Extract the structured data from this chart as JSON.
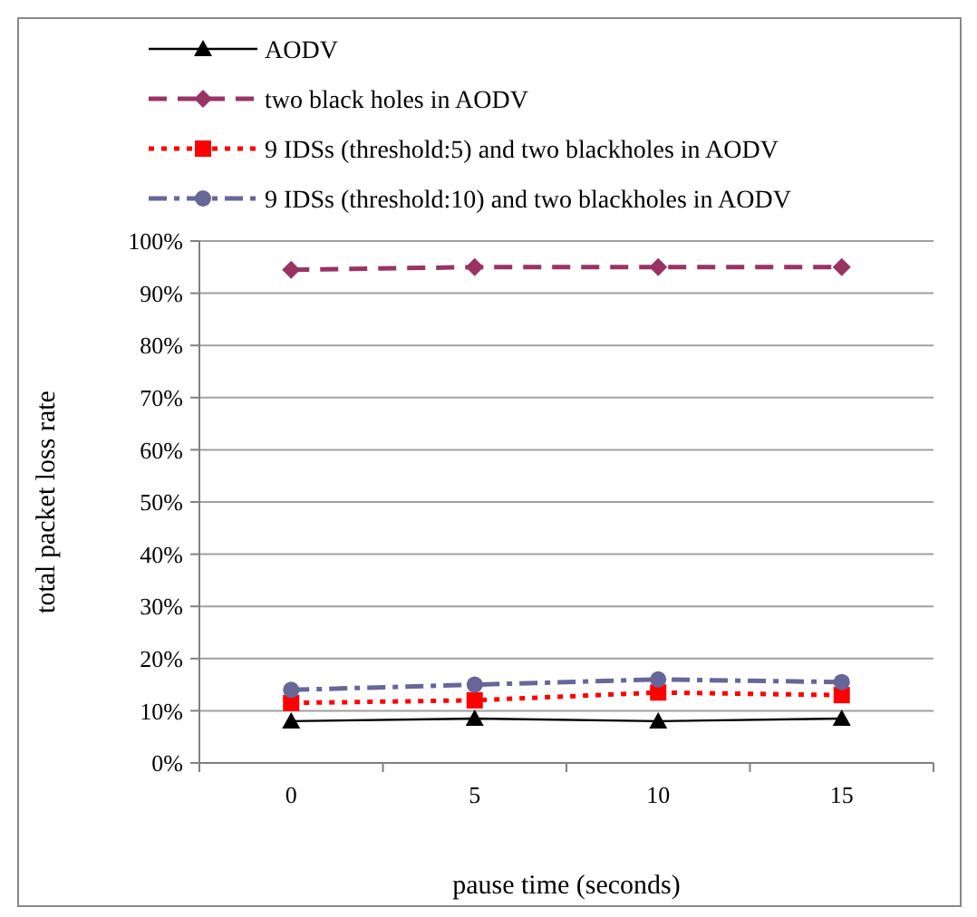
{
  "chart_data": {
    "type": "line",
    "xlabel": "pause time (seconds)",
    "ylabel": "total packet loss rate",
    "categories": [
      "0",
      "5",
      "10",
      "15"
    ],
    "series": [
      {
        "name": "AODV",
        "color": "#000000",
        "marker": "triangle",
        "line_style": "solid",
        "values": [
          8,
          8.5,
          8,
          8.5
        ]
      },
      {
        "name": "two black holes in AODV",
        "color": "#993366",
        "marker": "diamond",
        "line_style": "dashed",
        "values": [
          94.5,
          95,
          95,
          95
        ]
      },
      {
        "name": "9 IDSs (threshold:5) and two blackholes in AODV",
        "color": "#ff0000",
        "marker": "square",
        "line_style": "dotted",
        "values": [
          11.5,
          12,
          13.5,
          13
        ]
      },
      {
        "name": "9 IDSs (threshold:10) and two blackholes in AODV",
        "color": "#666699",
        "marker": "circle",
        "line_style": "dashdot",
        "values": [
          14,
          15,
          16,
          15.5
        ]
      }
    ],
    "ylim": [
      0,
      100
    ],
    "yticks": [
      {
        "value": 0,
        "label": "0%"
      },
      {
        "value": 10,
        "label": "10%"
      },
      {
        "value": 20,
        "label": "20%"
      },
      {
        "value": 30,
        "label": "30%"
      },
      {
        "value": 40,
        "label": "40%"
      },
      {
        "value": 50,
        "label": "50%"
      },
      {
        "value": 60,
        "label": "60%"
      },
      {
        "value": 70,
        "label": "70%"
      },
      {
        "value": 80,
        "label": "80%"
      },
      {
        "value": 90,
        "label": "90%"
      },
      {
        "value": 100,
        "label": "100%"
      }
    ],
    "grid": "y",
    "legend": "top"
  }
}
